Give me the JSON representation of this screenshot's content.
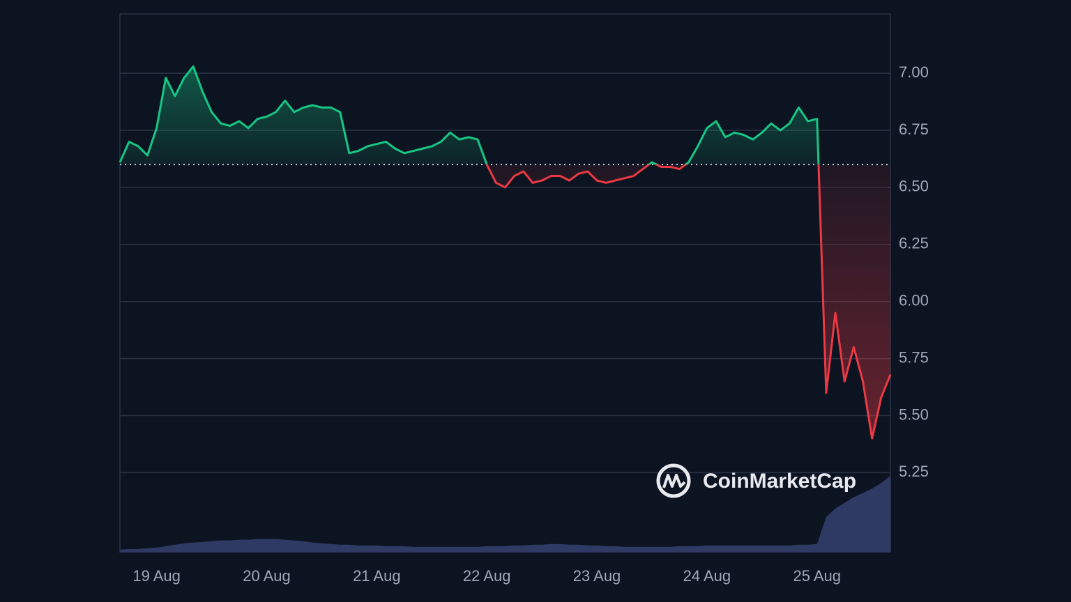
{
  "chart_data": {
    "type": "line",
    "values": [
      6.61,
      6.7,
      6.68,
      6.64,
      6.76,
      6.98,
      6.9,
      6.98,
      7.03,
      6.92,
      6.83,
      6.78,
      6.77,
      6.79,
      6.76,
      6.8,
      6.81,
      6.83,
      6.88,
      6.83,
      6.85,
      6.86,
      6.85,
      6.85,
      6.83,
      6.65,
      6.66,
      6.68,
      6.69,
      6.7,
      6.67,
      6.65,
      6.66,
      6.67,
      6.68,
      6.7,
      6.74,
      6.71,
      6.72,
      6.71,
      6.6,
      6.52,
      6.5,
      6.55,
      6.57,
      6.52,
      6.53,
      6.55,
      6.55,
      6.53,
      6.56,
      6.57,
      6.53,
      6.52,
      6.53,
      6.54,
      6.55,
      6.58,
      6.61,
      6.59,
      6.59,
      6.58,
      6.61,
      6.68,
      6.76,
      6.79,
      6.72,
      6.74,
      6.73,
      6.71,
      6.74,
      6.78,
      6.75,
      6.78,
      6.85,
      6.79,
      6.8,
      5.6,
      5.95,
      5.65,
      5.8,
      5.65,
      5.4,
      5.58,
      5.68
    ],
    "baseline": 6.6,
    "up_color": "#16c784",
    "down_color": "#ea3943",
    "volume": {
      "color": "#2e3a63",
      "values": [
        4,
        5,
        5,
        6,
        7,
        9,
        11,
        13,
        14,
        15,
        16,
        17,
        17,
        18,
        18,
        19,
        19,
        19,
        18,
        17,
        16,
        14,
        13,
        12,
        11,
        11,
        10,
        10,
        10,
        9,
        9,
        9,
        8,
        8,
        8,
        8,
        8,
        8,
        8,
        8,
        9,
        9,
        9,
        10,
        10,
        11,
        11,
        12,
        12,
        11,
        11,
        10,
        10,
        9,
        9,
        8,
        8,
        8,
        8,
        8,
        8,
        9,
        9,
        9,
        10,
        10,
        10,
        10,
        10,
        10,
        10,
        10,
        10,
        10,
        11,
        11,
        12,
        50,
        62,
        70,
        78,
        84,
        90,
        98,
        108
      ]
    },
    "xlim": [
      0,
      84
    ],
    "xticks": [
      {
        "value": 4,
        "label": "19 Aug"
      },
      {
        "value": 16,
        "label": "20 Aug"
      },
      {
        "value": 28,
        "label": "21 Aug"
      },
      {
        "value": 40,
        "label": "22 Aug"
      },
      {
        "value": 52,
        "label": "23 Aug"
      },
      {
        "value": 64,
        "label": "24 Aug"
      },
      {
        "value": 76,
        "label": "25 Aug"
      }
    ],
    "ylim": [
      4.9,
      7.26
    ],
    "yticks": [
      5.25,
      {
        "value": 5.5,
        "label": "5.50"
      },
      5.75,
      {
        "value": 6.0,
        "label": "6.00"
      },
      6.25,
      {
        "value": 6.5,
        "label": "6.50"
      },
      6.75,
      {
        "value": 7.0,
        "label": "7.00"
      }
    ],
    "grid": true,
    "watermark": "CoinMarketCap"
  }
}
